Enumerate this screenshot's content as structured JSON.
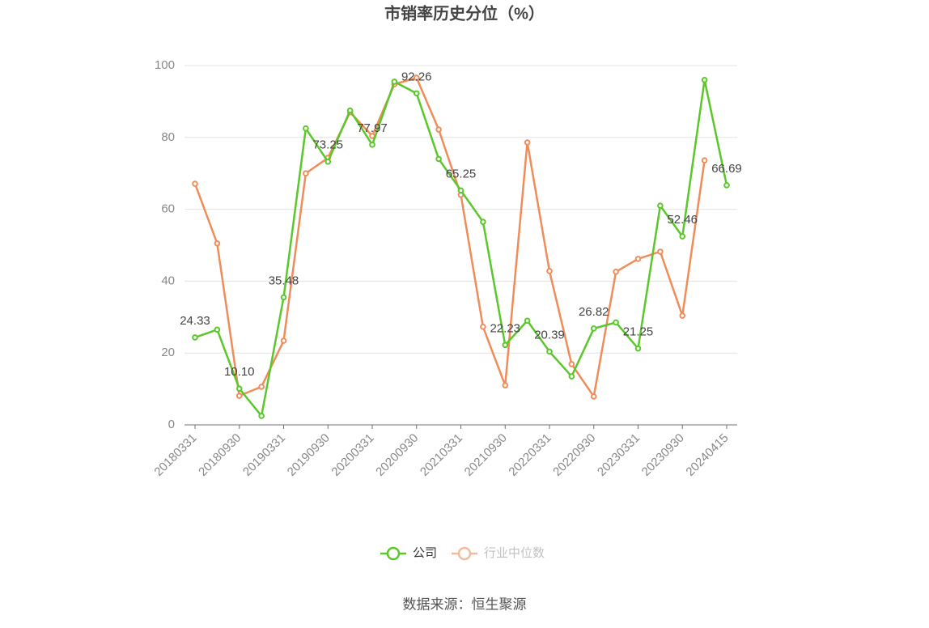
{
  "chart_data": {
    "type": "line",
    "title": "市销率历史分位（%）",
    "categories": [
      "20180331",
      null,
      "20180930",
      null,
      "20190331",
      null,
      "20190930",
      null,
      "20200331",
      null,
      "20200930",
      null,
      "20210331",
      null,
      "20210930",
      null,
      "20220331",
      null,
      "20220930",
      null,
      "20230331",
      null,
      "20230930",
      null,
      "20240415"
    ],
    "series": [
      {
        "name": "公司",
        "color": "#5ac72a",
        "values": [
          24.33,
          26.5,
          10.1,
          2.5,
          35.48,
          82.5,
          73.25,
          87.5,
          77.97,
          95.5,
          92.26,
          74,
          65.25,
          56.5,
          22.23,
          29,
          20.39,
          13.5,
          26.82,
          28.5,
          21.25,
          61,
          52.46,
          96,
          66.69
        ],
        "value_labels": [
          "24.33",
          null,
          "10.10",
          null,
          "35.48",
          null,
          "73.25",
          null,
          "77.97",
          null,
          "92.26",
          null,
          "65.25",
          null,
          "22.23",
          null,
          "20.39",
          null,
          "26.82",
          null,
          "21.25",
          null,
          "52.46",
          null,
          "66.69"
        ]
      },
      {
        "name": "行业中位数",
        "color": "#f08c5a",
        "values": [
          67.1,
          50.5,
          8.1,
          10.6,
          23.4,
          70,
          74.3,
          87,
          80.4,
          94.8,
          96.6,
          82.2,
          64,
          27.3,
          11,
          78.6,
          42.8,
          16.9,
          7.9,
          42.6,
          46.2,
          48.2,
          30.4,
          73.6,
          null
        ]
      }
    ],
    "ylim": [
      0,
      100
    ],
    "yticks": [
      0,
      20,
      40,
      60,
      80,
      100
    ],
    "grid": true,
    "source": "数据来源：恒生聚源"
  }
}
